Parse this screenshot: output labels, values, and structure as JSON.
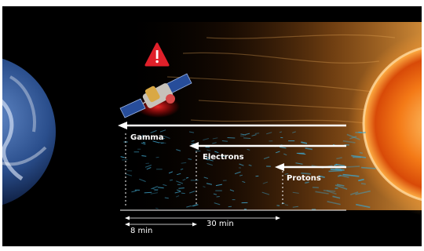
{
  "particles": [
    {
      "label": "Gamma"
    },
    {
      "label": "Electrons"
    },
    {
      "label": "Protons"
    }
  ],
  "timeline": {
    "short_label": "8 min",
    "long_label": "30 min"
  },
  "icons": {
    "warning": "warning-icon",
    "satellite": "satellite-icon",
    "earth": "earth-icon",
    "sun": "sun-icon"
  },
  "colors": {
    "background": "#000000",
    "arrow": "#ffffff",
    "warning": "#e0202a",
    "particle": "#3fa3c8"
  }
}
